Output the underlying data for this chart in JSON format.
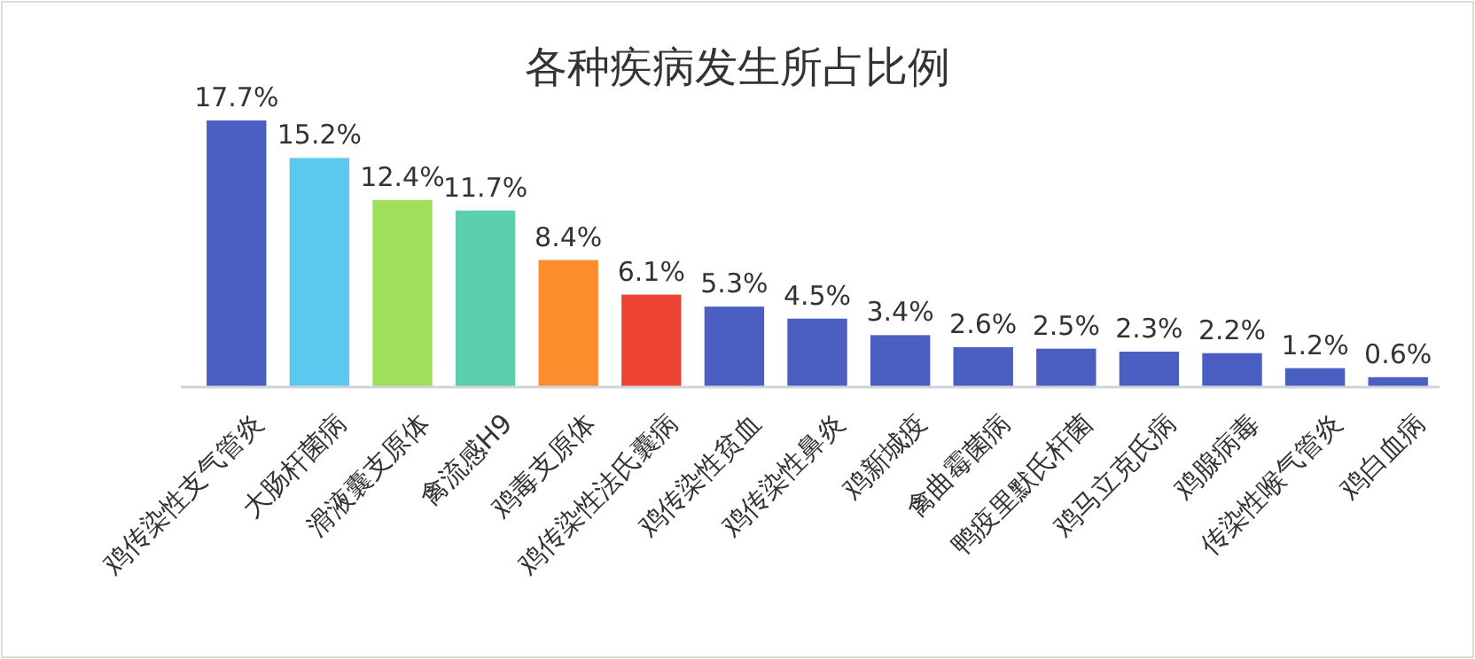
{
  "chart_data": {
    "type": "bar",
    "title": "各种疾病发生所占比例",
    "categories": [
      "鸡传染性支气管炎",
      "大肠杆菌病",
      "滑液囊支原体",
      "禽流感H9",
      "鸡毒支原体",
      "鸡传染性法氏囊病",
      "鸡传染性贫血",
      "鸡传染性鼻炎",
      "鸡新城疫",
      "禽曲霉菌病",
      "鸭疫里默氏杆菌",
      "鸡马立克氏病",
      "鸡腺病毒",
      "传染性喉气管炎",
      "鸡白血病"
    ],
    "values": [
      17.7,
      15.2,
      12.4,
      11.7,
      8.4,
      6.1,
      5.3,
      4.5,
      3.4,
      2.6,
      2.5,
      2.3,
      2.2,
      1.2,
      0.6
    ],
    "value_labels": [
      "17.7%",
      "15.2%",
      "12.4%",
      "11.7%",
      "8.4%",
      "6.1%",
      "5.3%",
      "4.5%",
      "3.4%",
      "2.6%",
      "2.5%",
      "2.3%",
      "2.2%",
      "1.2%",
      "0.6%"
    ],
    "colors": [
      "#4a5fc1",
      "#5bc8ef",
      "#9fe05a",
      "#5ccfae",
      "#fd8d2c",
      "#ee4433",
      "#4a5fc1",
      "#4a5fc1",
      "#4a5fc1",
      "#4a5fc1",
      "#4a5fc1",
      "#4a5fc1",
      "#4a5fc1",
      "#4a5fc1",
      "#4a5fc1"
    ]
  }
}
